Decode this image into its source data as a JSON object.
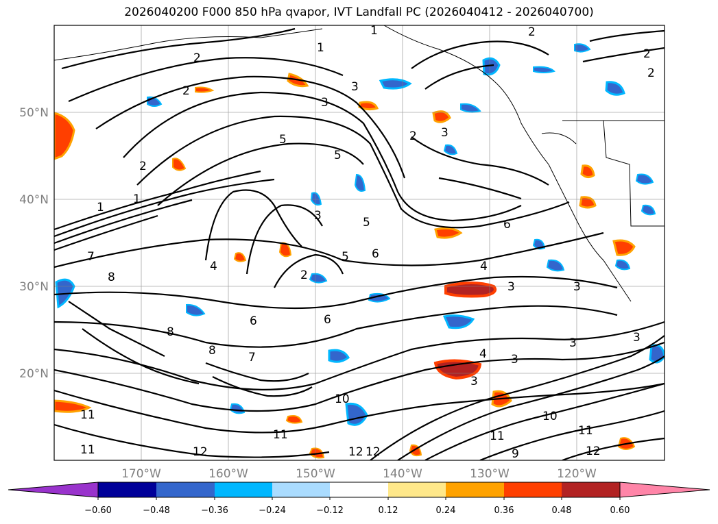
{
  "title": "2026040200 F000 850 hPa qvapor, IVT Landfall PC (2026040412 - 2026040700)",
  "latitude_labels": [
    "50°N",
    "40°N",
    "30°N",
    "20°N"
  ],
  "longitude_labels": [
    "170°W",
    "160°W",
    "150°W",
    "140°W",
    "130°W",
    "120°W"
  ],
  "colorbar": {
    "tick_labels": [
      "−0.60",
      "−0.48",
      "−0.36",
      "−0.24",
      "−0.12",
      "0.12",
      "0.24",
      "0.36",
      "0.48",
      "0.60"
    ],
    "colors": [
      "#9933cc",
      "#000099",
      "#3366cc",
      "#00b7ff",
      "#aadcff",
      "#ffffff",
      "#ffe88a",
      "#ffa200",
      "#ff3f00",
      "#b22222",
      "#ff85a8"
    ]
  },
  "contour_labels": [
    "1",
    "2",
    "3",
    "4",
    "5",
    "6",
    "7",
    "8",
    "9",
    "10",
    "11",
    "12"
  ],
  "colors": {
    "contour": "#000000",
    "grid": "#808080",
    "coastline": "#000000"
  }
}
